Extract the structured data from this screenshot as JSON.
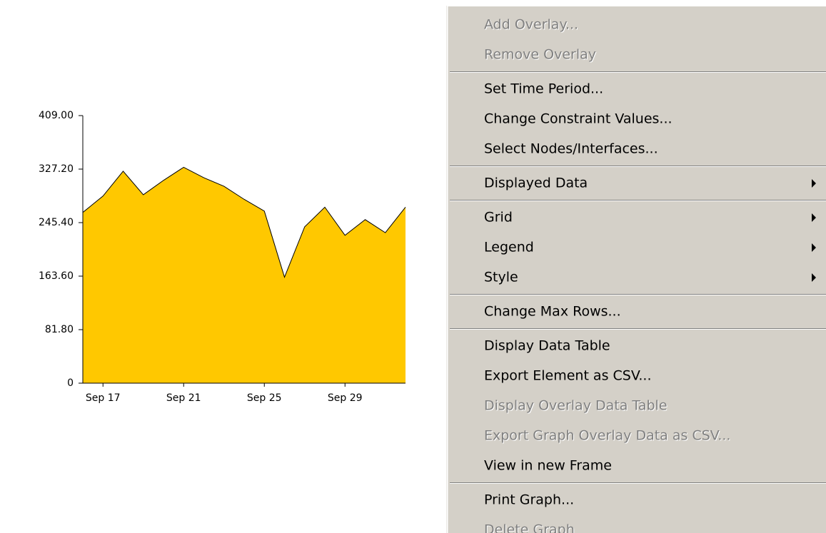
{
  "chart_data": {
    "type": "area",
    "color": "#ffc800",
    "line_color": "#000000",
    "categories": [
      null,
      "Sep 17",
      null,
      null,
      null,
      "Sep 21",
      null,
      null,
      null,
      "Sep 25",
      null,
      null,
      null,
      "Sep 29",
      null,
      null,
      null
    ],
    "values": [
      261,
      286,
      324,
      288,
      310,
      330,
      314,
      301,
      281,
      263,
      162,
      239,
      269,
      226,
      250,
      230,
      269
    ],
    "ylim": [
      0,
      409
    ],
    "yticks": [
      0,
      {
        "value": 81.8,
        "label": "81.80"
      },
      {
        "value": 163.6,
        "label": "163.60"
      },
      {
        "value": 245.4,
        "label": "245.40"
      },
      {
        "value": 327.2,
        "label": "327.20"
      },
      {
        "value": 409,
        "label": "409.00"
      }
    ]
  },
  "menu": {
    "groups": [
      [
        {
          "label": "Add Overlay...",
          "disabled": true
        },
        {
          "label": "Remove Overlay",
          "disabled": true
        }
      ],
      [
        {
          "label": "Set Time Period..."
        },
        {
          "label": "Change Constraint Values..."
        },
        {
          "label": "Select Nodes/Interfaces..."
        }
      ],
      [
        {
          "label": "Displayed Data",
          "submenu": true
        }
      ],
      [
        {
          "label": "Grid",
          "submenu": true
        },
        {
          "label": "Legend",
          "submenu": true
        },
        {
          "label": "Style",
          "submenu": true
        }
      ],
      [
        {
          "label": "Change Max Rows..."
        }
      ],
      [
        {
          "label": "Display Data Table"
        },
        {
          "label": "Export Element as CSV..."
        },
        {
          "label": "Display Overlay Data Table",
          "disabled": true
        },
        {
          "label": "Export Graph Overlay Data as CSV...",
          "disabled": true
        },
        {
          "label": "View in new Frame"
        }
      ],
      [
        {
          "label": "Print Graph..."
        },
        {
          "label": "Delete Graph",
          "disabled": true
        }
      ]
    ]
  }
}
